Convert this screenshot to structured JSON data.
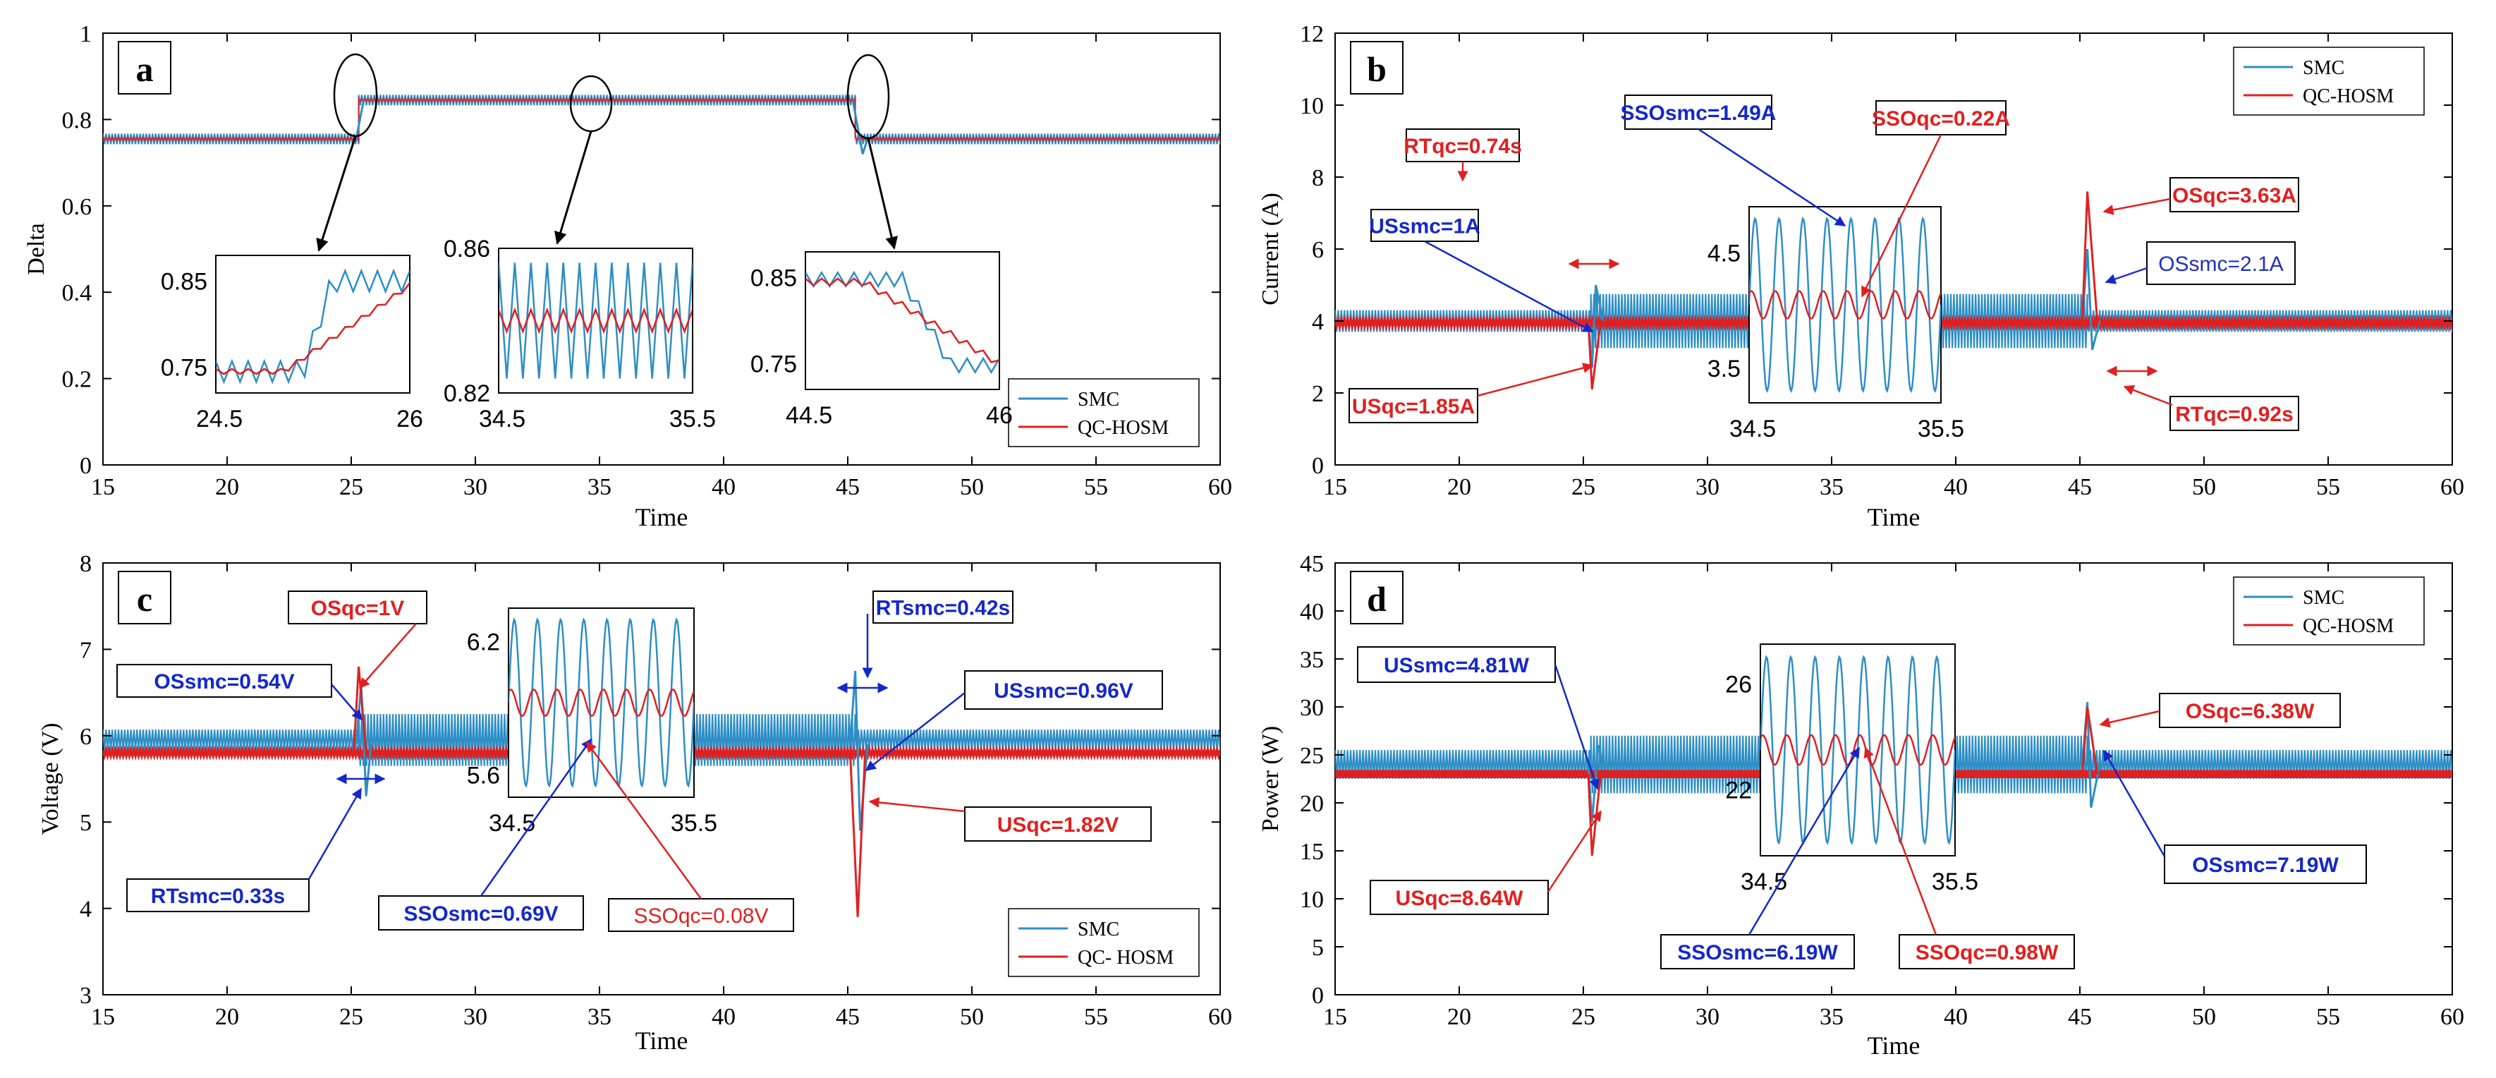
{
  "colors": {
    "smc": "#2d8ec5",
    "qc": "#e02020",
    "box_red": "#e02020",
    "box_blue": "#1428c8",
    "text_blue": "#2030c0"
  },
  "chart_data": [
    {
      "panel_label": "a",
      "type": "line",
      "xlabel": "Time",
      "ylabel": "Delta",
      "xlim": [
        15,
        60
      ],
      "ylim": [
        0,
        1
      ],
      "x_ticks": [
        15,
        20,
        25,
        30,
        35,
        40,
        45,
        50,
        55,
        60
      ],
      "x_tick_labels": [
        "15",
        "20",
        "25",
        "30",
        "35",
        "40",
        "45",
        "50",
        "55",
        "60"
      ],
      "y_ticks": [
        0,
        0.2,
        0.4,
        0.6,
        0.8,
        1
      ],
      "y_tick_labels": [
        "0",
        "0.2",
        "0.4",
        "0.6",
        "0.8",
        "1"
      ],
      "series": [
        {
          "name": "SMC",
          "segments": [
            {
              "from": 15,
              "to": 25.3,
              "level": 0.755,
              "ripple": 0.012
            },
            {
              "from": 25.3,
              "to": 45.3,
              "level": 0.845,
              "ripple": 0.012
            },
            {
              "from": 45.3,
              "to": 60,
              "level": 0.755,
              "ripple": 0.012
            }
          ]
        },
        {
          "name": "QC-HOSM",
          "segments": [
            {
              "from": 15,
              "to": 25.3,
              "level": 0.755,
              "ripple": 0.003
            },
            {
              "from": 25.3,
              "to": 45.3,
              "level": 0.845,
              "ripple": 0.003
            },
            {
              "from": 45.3,
              "to": 60,
              "level": 0.755,
              "ripple": 0.003
            }
          ]
        }
      ],
      "legend": {
        "position": "bottom-right",
        "entries": [
          "SMC",
          "QC-HOSM"
        ]
      },
      "insets": [
        {
          "xlim": [
            24.5,
            26
          ],
          "ylim": [
            0.72,
            0.88
          ],
          "x_tick_labels": [
            "24.5",
            "26"
          ],
          "y_tick_labels": [
            "0.75",
            "0.85"
          ],
          "y_tick_values": [
            0.75,
            0.85
          ],
          "event": "step-up"
        },
        {
          "xlim": [
            34.5,
            35.5
          ],
          "ylim": [
            0.82,
            0.86
          ],
          "x_tick_labels": [
            "34.5",
            "35.5"
          ],
          "y_tick_labels": [
            "0.82",
            "0.86"
          ],
          "y_tick_values": [
            0.82,
            0.86
          ],
          "event": "steady"
        },
        {
          "xlim": [
            44.5,
            46
          ],
          "ylim": [
            0.72,
            0.88
          ],
          "x_tick_labels": [
            "44.5",
            "46"
          ],
          "y_tick_labels": [
            "0.75",
            "0.85"
          ],
          "y_tick_values": [
            0.75,
            0.85
          ],
          "event": "step-down"
        }
      ],
      "annotations": []
    },
    {
      "panel_label": "b",
      "type": "line",
      "xlabel": "Time",
      "ylabel": "Current (A)",
      "xlim": [
        15,
        60
      ],
      "ylim": [
        0,
        12
      ],
      "x_ticks": [
        15,
        20,
        25,
        30,
        35,
        40,
        45,
        50,
        55,
        60
      ],
      "x_tick_labels": [
        "15",
        "20",
        "25",
        "30",
        "35",
        "40",
        "45",
        "50",
        "55",
        "60"
      ],
      "y_ticks": [
        0,
        2,
        4,
        6,
        8,
        10,
        12
      ],
      "y_tick_labels": [
        "0",
        "2",
        "4",
        "6",
        "8",
        "10",
        "12"
      ],
      "series": [
        {
          "name": "SMC",
          "segments": [
            {
              "from": 15,
              "to": 25.3,
              "level": 4.0,
              "ripple": 0.3
            },
            {
              "from": 25.3,
              "to": 45.3,
              "level": 4.0,
              "ripple": 0.75
            },
            {
              "from": 45.3,
              "to": 60,
              "level": 4.0,
              "ripple": 0.3
            }
          ]
        },
        {
          "name": "QC-HOSM",
          "segments": [
            {
              "from": 15,
              "to": 60,
              "level": 3.95,
              "ripple": 0.08
            }
          ]
        }
      ],
      "legend": {
        "position": "top-right",
        "entries": [
          "SMC",
          "QC-HOSM"
        ]
      },
      "insets": [
        {
          "xlim": [
            34.5,
            35.5
          ],
          "ylim": [
            3.2,
            4.9
          ],
          "x_tick_labels": [
            "34.5",
            "35.5"
          ],
          "y_tick_labels": [
            "3.5",
            "4.5"
          ],
          "y_tick_values": [
            3.5,
            4.5
          ],
          "event": "oscillation"
        }
      ],
      "annotations": [
        {
          "text": "RTqc=0.74s",
          "style": "box_red"
        },
        {
          "text": "SSOsmc=1.49A",
          "style": "box_blue"
        },
        {
          "text": "SSOqc=0.22A",
          "style": "box_red"
        },
        {
          "text": "OSqc=3.63A",
          "style": "box_red"
        },
        {
          "text": "USsmc=1A",
          "style": "box_blue"
        },
        {
          "text": "OSsmc=2.1A",
          "style": "box_plain_blue"
        },
        {
          "text": "USqc=1.85A",
          "style": "box_red"
        },
        {
          "text": "RTqc=0.92s",
          "style": "box_red"
        }
      ]
    },
    {
      "panel_label": "c",
      "type": "line",
      "xlabel": "Time",
      "ylabel": "Voltage (V)",
      "xlim": [
        15,
        60
      ],
      "ylim": [
        3,
        8
      ],
      "x_ticks": [
        15,
        20,
        25,
        30,
        35,
        40,
        45,
        50,
        55,
        60
      ],
      "x_tick_labels": [
        "15",
        "20",
        "25",
        "30",
        "35",
        "40",
        "45",
        "50",
        "55",
        "60"
      ],
      "y_ticks": [
        3,
        4,
        5,
        6,
        7,
        8
      ],
      "y_tick_labels": [
        "3",
        "4",
        "5",
        "6",
        "7",
        "8"
      ],
      "series": [
        {
          "name": "SMC",
          "segments": [
            {
              "from": 15,
              "to": 25.3,
              "level": 5.95,
              "ripple": 0.12
            },
            {
              "from": 25.3,
              "to": 45.3,
              "level": 5.95,
              "ripple": 0.3
            },
            {
              "from": 45.3,
              "to": 60,
              "level": 5.95,
              "ripple": 0.12
            }
          ]
        },
        {
          "name": "QC-HOSM",
          "segments": [
            {
              "from": 15,
              "to": 60,
              "level": 5.8,
              "ripple": 0.03
            }
          ]
        }
      ],
      "legend": {
        "position": "bottom-right",
        "entries": [
          "SMC",
          "QC- HOSM"
        ]
      },
      "insets": [
        {
          "xlim": [
            34.5,
            35.5
          ],
          "ylim": [
            5.5,
            6.35
          ],
          "x_tick_labels": [
            "34.5",
            "35.5"
          ],
          "y_tick_labels": [
            "5.6",
            "6.2"
          ],
          "y_tick_values": [
            5.6,
            6.2
          ],
          "event": "oscillation"
        }
      ],
      "annotations": [
        {
          "text": "OSqc=1V",
          "style": "box_red"
        },
        {
          "text": "OSsmc=0.54V",
          "style": "box_blue"
        },
        {
          "text": "RTsmc=0.42s",
          "style": "box_blue"
        },
        {
          "text": "USsmc=0.96V",
          "style": "box_blue"
        },
        {
          "text": "USqc=1.82V",
          "style": "box_red"
        },
        {
          "text": "RTsmc=0.33s",
          "style": "box_blue"
        },
        {
          "text": "SSOsmc=0.69V",
          "style": "box_blue"
        },
        {
          "text": "SSOqc=0.08V",
          "style": "box_plain_red"
        }
      ]
    },
    {
      "panel_label": "d",
      "type": "line",
      "xlabel": "Time",
      "ylabel": "Power (W)",
      "xlim": [
        15,
        60
      ],
      "ylim": [
        0,
        45
      ],
      "x_ticks": [
        15,
        20,
        25,
        30,
        35,
        40,
        45,
        50,
        55,
        60
      ],
      "x_tick_labels": [
        "15",
        "20",
        "25",
        "30",
        "35",
        "40",
        "45",
        "50",
        "55",
        "60"
      ],
      "y_ticks": [
        0,
        5,
        10,
        15,
        20,
        25,
        30,
        35,
        40,
        45
      ],
      "y_tick_labels": [
        "0",
        "5",
        "10",
        "15",
        "20",
        "25",
        "30",
        "35",
        "40",
        "45"
      ],
      "series": [
        {
          "name": "SMC",
          "segments": [
            {
              "from": 15,
              "to": 25.3,
              "level": 24.0,
              "ripple": 1.5
            },
            {
              "from": 25.3,
              "to": 45.3,
              "level": 24.0,
              "ripple": 3.0
            },
            {
              "from": 45.3,
              "to": 60,
              "level": 24.0,
              "ripple": 1.5
            }
          ]
        },
        {
          "name": "QC-HOSM",
          "segments": [
            {
              "from": 15,
              "to": 60,
              "level": 23.0,
              "ripple": 0.4
            }
          ]
        }
      ],
      "legend": {
        "position": "top-right",
        "entries": [
          "SMC",
          "QC-HOSM"
        ]
      },
      "insets": [
        {
          "xlim": [
            34.5,
            35.5
          ],
          "ylim": [
            19.5,
            27.5
          ],
          "x_tick_labels": [
            "34.5",
            "35.5"
          ],
          "y_tick_labels": [
            "22",
            "26"
          ],
          "y_tick_values": [
            22,
            26
          ],
          "event": "oscillation"
        }
      ],
      "annotations": [
        {
          "text": "USsmc=4.81W",
          "style": "box_blue"
        },
        {
          "text": "OSqc=6.38W",
          "style": "box_red"
        },
        {
          "text": "USqc=8.64W",
          "style": "box_red"
        },
        {
          "text": "OSsmc=7.19W",
          "style": "box_blue"
        },
        {
          "text": "SSOsmc=6.19W",
          "style": "box_blue"
        },
        {
          "text": "SSOqc=0.98W",
          "style": "box_red"
        }
      ]
    }
  ]
}
